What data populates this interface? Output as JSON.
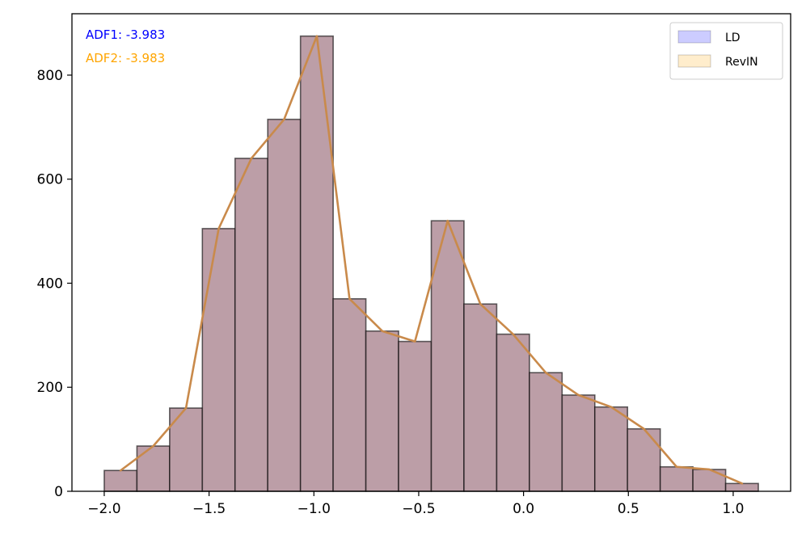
{
  "chart_data": {
    "type": "bar",
    "subtype": "histogram",
    "bin_edges": [
      -2.0,
      -1.844,
      -1.688,
      -1.532,
      -1.376,
      -1.22,
      -1.064,
      -0.908,
      -0.752,
      -0.596,
      -0.44,
      -0.284,
      -0.128,
      0.028,
      0.184,
      0.34,
      0.496,
      0.652,
      0.808,
      0.964,
      1.12
    ],
    "series": [
      {
        "name": "LD",
        "values": [
          40,
          87,
          160,
          505,
          640,
          715,
          875,
          370,
          308,
          288,
          520,
          360,
          302,
          228,
          185,
          162,
          120,
          47,
          42,
          15
        ],
        "color": "#0000ff"
      },
      {
        "name": "RevIN",
        "values": [
          40,
          87,
          160,
          505,
          640,
          715,
          875,
          370,
          308,
          288,
          520,
          360,
          302,
          228,
          185,
          162,
          120,
          47,
          42,
          15
        ],
        "color": "#ffa500"
      }
    ],
    "overlap_fill": "#bc9ea7",
    "line": {
      "color": "#c98a4b",
      "x": [
        -1.922,
        -1.766,
        -1.61,
        -1.454,
        -1.298,
        -1.142,
        -0.986,
        -0.83,
        -0.674,
        -0.518,
        -0.362,
        -0.206,
        -0.05,
        0.106,
        0.262,
        0.418,
        0.574,
        0.73,
        0.886,
        1.042
      ],
      "y": [
        40,
        87,
        160,
        505,
        640,
        715,
        875,
        370,
        308,
        288,
        520,
        360,
        302,
        228,
        185,
        162,
        120,
        47,
        42,
        15
      ]
    },
    "x_ticks": [
      -2.0,
      -1.5,
      -1.0,
      -0.5,
      0.0,
      0.5,
      1.0
    ],
    "x_tick_labels": [
      "−2.0",
      "−1.5",
      "−1.0",
      "−0.5",
      "0.0",
      "0.5",
      "1.0"
    ],
    "y_ticks": [
      0,
      200,
      400,
      600,
      800
    ],
    "y_tick_labels": [
      "0",
      "200",
      "400",
      "600",
      "800"
    ],
    "xlim": [
      -2.154,
      1.274
    ],
    "ylim": [
      0,
      918
    ],
    "grid": false,
    "legend_position": "top-right",
    "annotations": [
      {
        "text": "ADF1: -3.983",
        "color": "#0000ff"
      },
      {
        "text": "ADF2: -3.983",
        "color": "#ffa500"
      }
    ],
    "title": "",
    "xlabel": "",
    "ylabel": ""
  }
}
